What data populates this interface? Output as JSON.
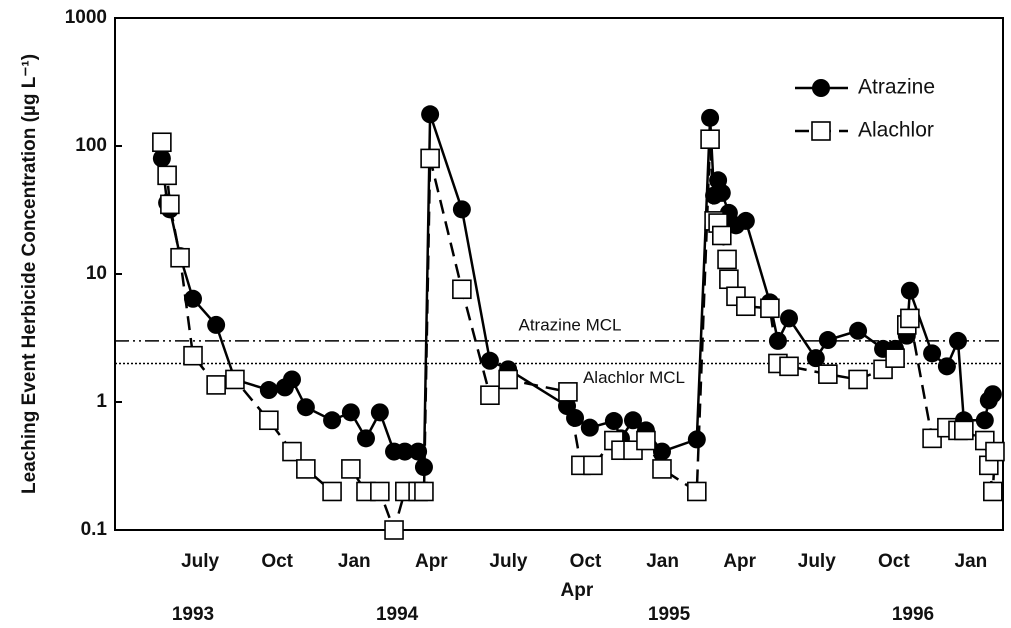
{
  "chart_data": {
    "type": "line",
    "y_label": "Leaching Event Herbicide Concentration (µg L⁻¹)",
    "log_y": true,
    "ylim": [
      0.1,
      1000
    ],
    "yticks": [
      0.1,
      1,
      10,
      100,
      1000
    ],
    "xlim": [
      1993.224,
      1996.104
    ],
    "xticks": [
      {
        "value": 1993.5,
        "label": "July"
      },
      {
        "value": 1993.75,
        "label": "Oct"
      },
      {
        "value": 1994.0,
        "label": "Jan"
      },
      {
        "value": 1994.25,
        "label": "Apr"
      },
      {
        "value": 1994.5,
        "label": "July"
      },
      {
        "value": 1994.75,
        "label": "Oct"
      },
      {
        "value": 1995.0,
        "label": "Jan"
      },
      {
        "value": 1995.25,
        "label": "Apr"
      },
      {
        "value": 1995.5,
        "label": "July"
      },
      {
        "value": 1995.75,
        "label": "Oct"
      },
      {
        "value": 1996.0,
        "label": "Jan"
      }
    ],
    "x_sublabel": {
      "value": 1994.722,
      "label": "Apr"
    },
    "year_labels": [
      {
        "value": 1993.477,
        "label": "1993"
      },
      {
        "value": 1994.139,
        "label": "1994"
      },
      {
        "value": 1995.021,
        "label": "1995"
      },
      {
        "value": 1995.812,
        "label": "1996"
      }
    ],
    "legend": "upper right",
    "reference_lines": [
      {
        "name": "Atrazine MCL",
        "value": 3,
        "style": "dashdot"
      },
      {
        "name": "Alachlor MCL",
        "value": 2,
        "style": "dotted"
      }
    ],
    "series": [
      {
        "name": "Atrazine",
        "color": "#000000",
        "marker": "circle",
        "line_style": "solid",
        "x": [
          1993.376,
          1993.393,
          1993.402,
          1993.435,
          1993.477,
          1993.552,
          1993.613,
          1993.723,
          1993.775,
          1993.798,
          1993.843,
          1993.928,
          1993.989,
          1994.038,
          1994.083,
          1994.129,
          1994.164,
          1994.207,
          1994.226,
          1994.246,
          1994.349,
          1994.44,
          1994.499,
          1994.69,
          1994.716,
          1994.764,
          1994.842,
          1994.865,
          1994.904,
          1994.946,
          1994.998,
          1995.111,
          1995.154,
          1995.167,
          1995.18,
          1995.192,
          1995.215,
          1995.238,
          1995.27,
          1995.348,
          1995.374,
          1995.41,
          1995.497,
          1995.536,
          1995.634,
          1995.715,
          1995.754,
          1995.792,
          1995.802,
          1995.874,
          1995.922,
          1995.958,
          1995.977,
          1996.045,
          1996.058,
          1996.071
        ],
        "values": [
          80,
          36,
          32,
          13.8,
          6.4,
          4.0,
          1.5,
          1.24,
          1.3,
          1.5,
          0.91,
          0.72,
          0.83,
          0.52,
          0.83,
          0.41,
          0.41,
          0.41,
          0.31,
          177,
          32,
          2.1,
          1.8,
          0.93,
          0.75,
          0.63,
          0.71,
          0.52,
          0.72,
          0.6,
          0.41,
          0.51,
          166,
          41,
          54,
          43,
          30,
          24,
          26,
          6,
          3,
          4.5,
          2.2,
          3.05,
          3.6,
          2.6,
          2.6,
          3.3,
          7.4,
          2.4,
          1.9,
          3,
          0.72,
          0.72,
          1.03,
          1.15
        ]
      },
      {
        "name": "Alachlor",
        "color": "#000000",
        "marker": "square",
        "line_style": "dashed",
        "x": [
          1993.376,
          1993.393,
          1993.402,
          1993.435,
          1993.477,
          1993.552,
          1993.613,
          1993.723,
          1993.798,
          1993.843,
          1993.928,
          1993.989,
          1994.038,
          1994.083,
          1994.129,
          1994.164,
          1994.207,
          1994.226,
          1994.246,
          1994.349,
          1994.44,
          1994.499,
          1994.693,
          1994.735,
          1994.774,
          1994.842,
          1994.865,
          1994.904,
          1994.946,
          1994.998,
          1995.111,
          1995.154,
          1995.167,
          1995.18,
          1995.192,
          1995.209,
          1995.215,
          1995.238,
          1995.27,
          1995.348,
          1995.374,
          1995.41,
          1995.536,
          1995.634,
          1995.715,
          1995.754,
          1995.792,
          1995.802,
          1995.874,
          1995.922,
          1995.958,
          1995.977,
          1996.045,
          1996.058,
          1996.071,
          1996.078
        ],
        "values": [
          107,
          59,
          35,
          13.4,
          2.3,
          1.36,
          1.5,
          0.72,
          0.41,
          0.3,
          0.2,
          0.3,
          0.2,
          0.2,
          0.1,
          0.2,
          0.2,
          0.2,
          80,
          7.6,
          1.13,
          1.5,
          1.2,
          0.32,
          0.32,
          0.5,
          0.42,
          0.42,
          0.5,
          0.3,
          0.2,
          113,
          26,
          25,
          20,
          13,
          9.1,
          6.7,
          5.6,
          5.4,
          2.0,
          1.9,
          1.65,
          1.5,
          1.8,
          2.2,
          4.0,
          4.5,
          0.52,
          0.63,
          0.6,
          0.6,
          0.5,
          0.32,
          0.2,
          0.41
        ]
      }
    ]
  }
}
